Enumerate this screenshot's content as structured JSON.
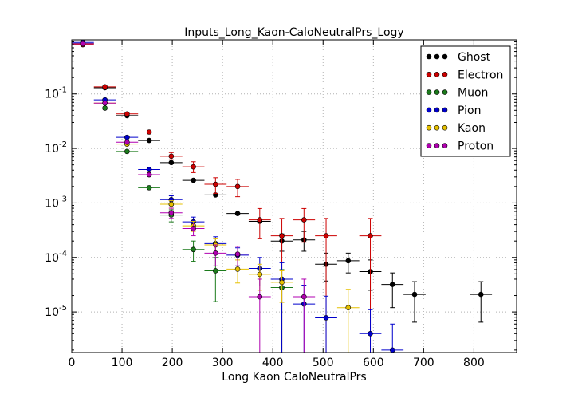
{
  "chart_data": {
    "type": "scatter",
    "title": "Inputs_Long_Kaon-CaloNeutralPrs_Logy",
    "xlabel": "Long Kaon CaloNeutralPrs",
    "ylabel": "",
    "xlim": [
      0,
      885
    ],
    "ylim": [
      1.8e-06,
      0.98
    ],
    "yscale": "log",
    "grid": true,
    "legend_position": "top-right",
    "x_ticks": [
      {
        "value": 0,
        "label": "0"
      },
      {
        "value": 100,
        "label": "100"
      },
      {
        "value": 200,
        "label": "200"
      },
      {
        "value": 300,
        "label": "300"
      },
      {
        "value": 400,
        "label": "400"
      },
      {
        "value": 500,
        "label": "500"
      },
      {
        "value": 600,
        "label": "600"
      },
      {
        "value": 700,
        "label": "700"
      },
      {
        "value": 800,
        "label": "800"
      }
    ],
    "y_ticks": [
      {
        "value": 0.1,
        "base": "10",
        "exp": "-1"
      },
      {
        "value": 0.01,
        "base": "10",
        "exp": "-2"
      },
      {
        "value": 0.001,
        "base": "10",
        "exp": "-3"
      },
      {
        "value": 0.0001,
        "base": "10",
        "exp": "-4"
      },
      {
        "value": 1e-05,
        "base": "10",
        "exp": "-5"
      }
    ],
    "bin_half_width": 22,
    "series": [
      {
        "name": "Ghost",
        "color": "#000000",
        "points": [
          {
            "x": 22,
            "y": 0.84
          },
          {
            "x": 66,
            "y": 0.13
          },
          {
            "x": 110,
            "y": 0.04
          },
          {
            "x": 154,
            "y": 0.014
          },
          {
            "x": 198,
            "y": 0.0055
          },
          {
            "x": 242,
            "y": 0.0026
          },
          {
            "x": 286,
            "y": 0.0014
          },
          {
            "x": 330,
            "y": 0.00064
          },
          {
            "x": 374,
            "y": 0.00046
          },
          {
            "x": 418,
            "y": 0.0002,
            "lo": 0.00013,
            "hi": 0.00027
          },
          {
            "x": 462,
            "y": 0.00021,
            "lo": 0.00013,
            "hi": 0.0003
          },
          {
            "x": 506,
            "y": 7.5e-05,
            "lo": 3.7e-05,
            "hi": 0.00012
          },
          {
            "x": 550,
            "y": 8.7e-05,
            "lo": 5.2e-05,
            "hi": 0.00012
          },
          {
            "x": 594,
            "y": 5.5e-05,
            "lo": 2.5e-05,
            "hi": 9e-05
          },
          {
            "x": 638,
            "y": 3.2e-05,
            "lo": 1.2e-05,
            "hi": 5.2e-05
          },
          {
            "x": 682,
            "y": 2.1e-05,
            "lo": 6.5e-06,
            "hi": 3.6e-05
          },
          {
            "x": 814,
            "y": 2.1e-05,
            "lo": 6.5e-06,
            "hi": 3.6e-05
          }
        ]
      },
      {
        "name": "Electron",
        "color": "#cc0000",
        "points": [
          {
            "x": 22,
            "y": 0.8
          },
          {
            "x": 66,
            "y": 0.135
          },
          {
            "x": 110,
            "y": 0.043
          },
          {
            "x": 154,
            "y": 0.02
          },
          {
            "x": 198,
            "y": 0.0072,
            "lo": 0.0062,
            "hi": 0.0084
          },
          {
            "x": 242,
            "y": 0.0046,
            "lo": 0.0036,
            "hi": 0.0057
          },
          {
            "x": 286,
            "y": 0.0022,
            "lo": 0.0015,
            "hi": 0.0029
          },
          {
            "x": 330,
            "y": 0.002,
            "lo": 0.0013,
            "hi": 0.0027
          },
          {
            "x": 374,
            "y": 0.00049,
            "lo": 0.00022,
            "hi": 0.00079
          },
          {
            "x": 418,
            "y": 0.00025,
            "lo": 1.8e-06,
            "hi": 0.00052
          },
          {
            "x": 462,
            "y": 0.00049,
            "lo": 0.00019,
            "hi": 0.00079
          },
          {
            "x": 506,
            "y": 0.00025,
            "lo": 1.8e-06,
            "hi": 0.00052
          },
          {
            "x": 594,
            "y": 0.00025,
            "lo": 1.8e-06,
            "hi": 0.00052
          }
        ]
      },
      {
        "name": "Muon",
        "color": "#1b7a1b",
        "points": [
          {
            "x": 66,
            "y": 0.055
          },
          {
            "x": 110,
            "y": 0.0088
          },
          {
            "x": 154,
            "y": 0.0019
          },
          {
            "x": 198,
            "y": 0.0006,
            "lo": 0.00045,
            "hi": 0.00075
          },
          {
            "x": 242,
            "y": 0.00014,
            "lo": 8.5e-05,
            "hi": 0.0002
          },
          {
            "x": 286,
            "y": 5.7e-05,
            "lo": 1.55e-05,
            "hi": 0.0001
          },
          {
            "x": 418,
            "y": 2.8e-05,
            "lo": 1.8e-06,
            "hi": 6e-05
          }
        ]
      },
      {
        "name": "Pion",
        "color": "#0000cc",
        "points": [
          {
            "x": 22,
            "y": 0.88
          },
          {
            "x": 66,
            "y": 0.078
          },
          {
            "x": 110,
            "y": 0.016
          },
          {
            "x": 154,
            "y": 0.0041
          },
          {
            "x": 198,
            "y": 0.00115,
            "lo": 0.00095,
            "hi": 0.00135
          },
          {
            "x": 242,
            "y": 0.00045,
            "lo": 0.00036,
            "hi": 0.00055
          },
          {
            "x": 286,
            "y": 0.00018,
            "lo": 0.00012,
            "hi": 0.00024
          },
          {
            "x": 330,
            "y": 0.00011,
            "lo": 7e-05,
            "hi": 0.00015
          },
          {
            "x": 374,
            "y": 6.3e-05,
            "lo": 3e-05,
            "hi": 0.0001
          },
          {
            "x": 418,
            "y": 4e-05,
            "lo": 1.8e-06,
            "hi": 8e-05
          },
          {
            "x": 462,
            "y": 1.4e-05,
            "lo": 1.8e-06,
            "hi": 3.1e-05
          },
          {
            "x": 506,
            "y": 7.8e-06,
            "lo": 1.8e-06,
            "hi": 1.95e-05
          },
          {
            "x": 594,
            "y": 4e-06,
            "lo": 1.8e-06,
            "hi": 1.1e-05
          },
          {
            "x": 638,
            "y": 2e-06,
            "lo": 1.8e-06,
            "hi": 6e-06
          }
        ]
      },
      {
        "name": "Kaon",
        "color": "#e6c000",
        "points": [
          {
            "x": 22,
            "y": 0.83
          },
          {
            "x": 66,
            "y": 0.068
          },
          {
            "x": 110,
            "y": 0.012
          },
          {
            "x": 154,
            "y": 0.0033
          },
          {
            "x": 198,
            "y": 0.00095,
            "lo": 0.0008,
            "hi": 0.0011
          },
          {
            "x": 242,
            "y": 0.00038,
            "lo": 0.0003,
            "hi": 0.00046
          },
          {
            "x": 286,
            "y": 0.00017,
            "lo": 0.00012,
            "hi": 0.00022
          },
          {
            "x": 330,
            "y": 6.1e-05,
            "lo": 3.4e-05,
            "hi": 9e-05
          },
          {
            "x": 374,
            "y": 4.9e-05,
            "lo": 2.5e-05,
            "hi": 7.5e-05
          },
          {
            "x": 418,
            "y": 3.5e-05,
            "lo": 1.5e-05,
            "hi": 5.7e-05
          },
          {
            "x": 550,
            "y": 1.2e-05,
            "lo": 1.8e-06,
            "hi": 2.6e-05
          }
        ]
      },
      {
        "name": "Proton",
        "color": "#b000b0",
        "points": [
          {
            "x": 22,
            "y": 0.83
          },
          {
            "x": 66,
            "y": 0.068
          },
          {
            "x": 110,
            "y": 0.013
          },
          {
            "x": 154,
            "y": 0.0033
          },
          {
            "x": 198,
            "y": 0.00066,
            "lo": 0.00052,
            "hi": 0.0008
          },
          {
            "x": 242,
            "y": 0.00034,
            "lo": 0.00025,
            "hi": 0.00043
          },
          {
            "x": 286,
            "y": 0.00012,
            "lo": 7e-05,
            "hi": 0.00017
          },
          {
            "x": 330,
            "y": 0.000115,
            "lo": 7e-05,
            "hi": 0.00016
          },
          {
            "x": 374,
            "y": 1.9e-05,
            "lo": 1.8e-06,
            "hi": 4e-05
          },
          {
            "x": 462,
            "y": 1.9e-05,
            "lo": 1.8e-06,
            "hi": 4e-05
          }
        ]
      }
    ]
  }
}
